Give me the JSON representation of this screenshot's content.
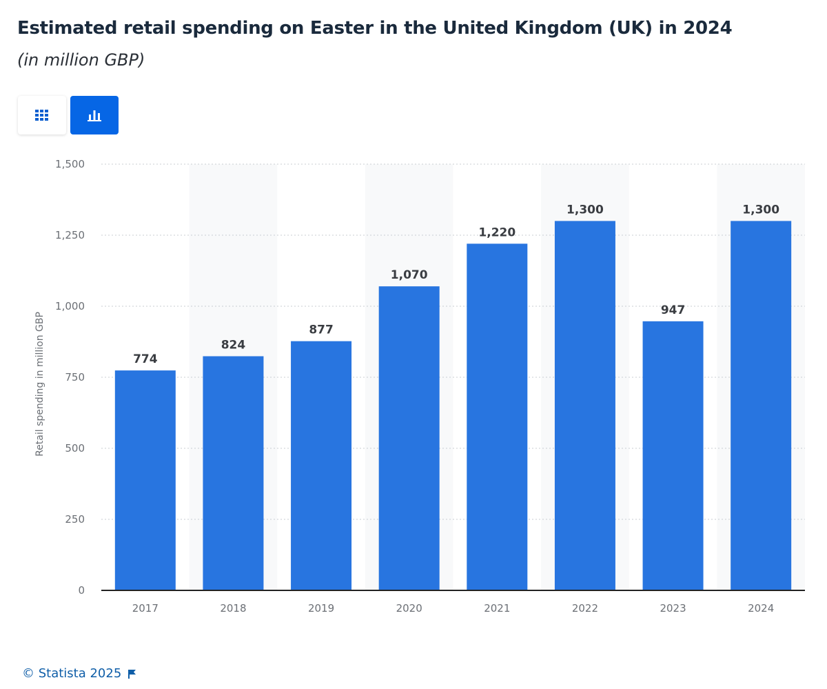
{
  "header": {
    "title": "Estimated retail spending on Easter in the United Kingdom (UK) in 2024",
    "subtitle": "(in million GBP)"
  },
  "toolbar": {
    "table_icon": "grid-icon",
    "chart_icon": "bar-chart-icon",
    "active": "chart"
  },
  "chart_data": {
    "type": "bar",
    "categories": [
      "2017",
      "2018",
      "2019",
      "2020",
      "2021",
      "2022",
      "2023",
      "2024"
    ],
    "values": [
      774,
      824,
      877,
      1070,
      1220,
      1300,
      947,
      1300
    ],
    "data_labels": [
      "774",
      "824",
      "877",
      "1,070",
      "1,220",
      "1,300",
      "947",
      "1,300"
    ],
    "ylabel": "Retail spending in million GBP",
    "xlabel": "",
    "ylim": [
      0,
      1500
    ],
    "yticks": [
      0,
      250,
      500,
      750,
      1000,
      1250,
      1500
    ],
    "ytick_labels": [
      "0",
      "250",
      "500",
      "750",
      "1,000",
      "1,250",
      "1,500"
    ],
    "grid": true,
    "bar_color": "#2875e0"
  },
  "footer": {
    "copyright": "© Statista 2025",
    "flag_icon": "flag-icon"
  }
}
